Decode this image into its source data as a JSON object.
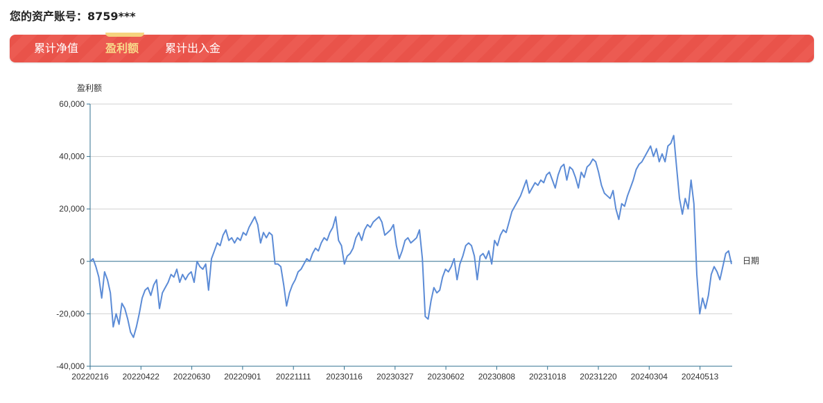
{
  "header": {
    "account_label": "您的资产账号：8759***"
  },
  "tabs": [
    {
      "label": "累计净值",
      "active": false
    },
    {
      "label": "盈利额",
      "active": true
    },
    {
      "label": "累计出入金",
      "active": false
    }
  ],
  "colors": {
    "tab_bar": "#e9534a",
    "active_tab": "#f8d98a",
    "line": "#5b8bd6",
    "grid": "#d0d0d0",
    "axis": "#2f6f8f"
  },
  "chart_data": {
    "type": "line",
    "ylabel": "盈利额",
    "xlabel": "日期",
    "ylim": [
      -40000,
      60000
    ],
    "y_ticks": [
      60000,
      40000,
      20000,
      0,
      -20000,
      -40000
    ],
    "y_tick_labels": [
      "60,000",
      "40,000",
      "20,000",
      "0",
      "-20,000",
      "-40,000"
    ],
    "x_tick_labels": [
      "20220216",
      "20220422",
      "20220630",
      "20220901",
      "20221111",
      "20230116",
      "20230327",
      "20230602",
      "20230808",
      "20231018",
      "20231220",
      "20240304",
      "20240513"
    ],
    "grid": true,
    "legend": "none",
    "series": [
      {
        "values": [
          0,
          1000,
          -2000,
          -6000,
          -14000,
          -4000,
          -7000,
          -12000,
          -25000,
          -20000,
          -24000,
          -16000,
          -18000,
          -22000,
          -27000,
          -29000,
          -25000,
          -20000,
          -14000,
          -11000,
          -10000,
          -13000,
          -9000,
          -7000,
          -18000,
          -12000,
          -10000,
          -8000,
          -5000,
          -6000,
          -3000,
          -8000,
          -5000,
          -7000,
          -5000,
          -4000,
          -8000,
          0,
          -2000,
          -3000,
          -1000,
          -11000,
          1000,
          4000,
          7000,
          6000,
          10000,
          12000,
          8000,
          9000,
          7000,
          9000,
          8000,
          11000,
          10000,
          13000,
          15000,
          17000,
          14000,
          7000,
          11000,
          9000,
          11000,
          10000,
          -1000,
          -1000,
          -2000,
          -9000,
          -17000,
          -12000,
          -9000,
          -7000,
          -4000,
          -3000,
          -1000,
          1000,
          0,
          3000,
          5000,
          4000,
          7000,
          9000,
          8000,
          11000,
          13000,
          17000,
          8000,
          6000,
          -1000,
          2000,
          3000,
          5000,
          9000,
          11000,
          8000,
          12000,
          14000,
          13000,
          15000,
          16000,
          17000,
          15000,
          10000,
          11000,
          12000,
          14000,
          6000,
          1000,
          4000,
          8000,
          9000,
          7000,
          8000,
          9000,
          12000,
          1000,
          -21000,
          -22000,
          -15000,
          -10000,
          -12000,
          -11000,
          -6000,
          -3000,
          -4000,
          -2000,
          1000,
          -7000,
          -1000,
          2000,
          6000,
          7000,
          6000,
          2000,
          -7000,
          2000,
          3000,
          1000,
          4000,
          -1000,
          8000,
          6000,
          10000,
          12000,
          11000,
          15000,
          19000,
          21000,
          23000,
          25000,
          28000,
          31000,
          26000,
          28000,
          30000,
          29000,
          31000,
          30000,
          33000,
          34000,
          31000,
          28000,
          33000,
          36000,
          37000,
          31000,
          36000,
          35000,
          32000,
          28000,
          34000,
          32000,
          36000,
          37000,
          39000,
          38000,
          34000,
          29000,
          26000,
          25000,
          24000,
          27000,
          20000,
          16000,
          22000,
          21000,
          25000,
          28000,
          31000,
          35000,
          37000,
          38000,
          40000,
          42000,
          44000,
          40000,
          43000,
          38000,
          41000,
          38000,
          44000,
          45000,
          48000,
          36000,
          24000,
          18000,
          24000,
          20000,
          31000,
          22000,
          -5000,
          -20000,
          -14000,
          -18000,
          -13000,
          -5000,
          -2000,
          -4000,
          -7000,
          -2000,
          3000,
          4000,
          -1000
        ]
      }
    ]
  }
}
